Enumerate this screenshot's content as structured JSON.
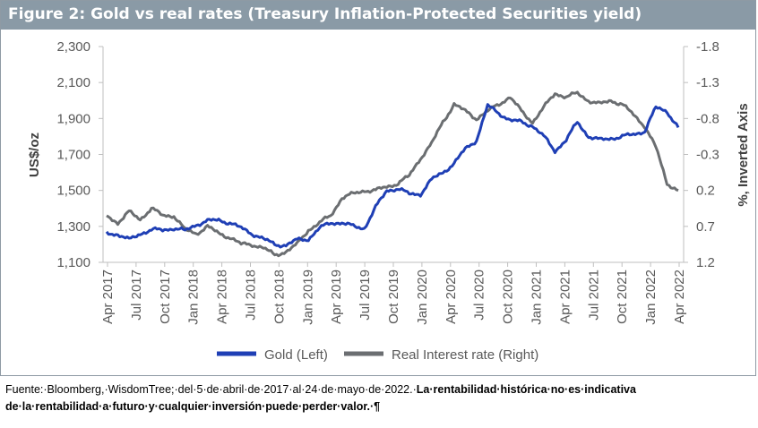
{
  "figure": {
    "title": "Figure 2: Gold vs real rates (Treasury Inflation-Protected Securities yield)"
  },
  "footnote": {
    "line1_plain": "Fuente:·Bloomberg,·WisdomTree;·del·5·de·abril·de·2017·al·24·de·mayo·de·2022.·",
    "line1_bold": "La·rentabilidad·histórica·no·es·indicativa",
    "line2_bold": "de·la·rentabilidad·a·futuro·y·cualquier·inversión·puede·perder·valor.·¶"
  },
  "colors": {
    "gold": "#1f3fb5",
    "real_rate": "#6b6e71",
    "title_bar": "#8a9aa6"
  },
  "chart_data": {
    "type": "line",
    "ylabel": "US$/oz",
    "y2label": "%, Inverted Axis",
    "ylim": [
      1100,
      2300
    ],
    "y2lim": [
      1.2,
      -1.8
    ],
    "y2_inverted": true,
    "y_ticks": [
      "1,100",
      "1,300",
      "1,500",
      "1,700",
      "1,900",
      "2,100",
      "2,300"
    ],
    "y2_ticks": [
      "1.2",
      "0.7",
      "0.2",
      "-0.3",
      "-0.8",
      "-1.3",
      "-1.8"
    ],
    "x_ticks": [
      "Apr 2017",
      "Jul 2017",
      "Oct 2017",
      "Jan 2018",
      "Apr 2018",
      "Jul 2018",
      "Oct 2018",
      "Jan 2019",
      "Apr 2019",
      "Jul 2019",
      "Oct 2019",
      "Jan 2020",
      "Apr 2020",
      "Jul 2020",
      "Oct 2020",
      "Jan 2021",
      "Apr 2021",
      "Jul 2021",
      "Oct 2021",
      "Jan 2022",
      "Apr 2022"
    ],
    "legend_position": "bottom",
    "grid": false,
    "series": [
      {
        "name": "Gold (Left)",
        "axis": "left",
        "values": [
          1265,
          1255,
          1225,
          1260,
          1280,
          1280,
          1290,
          1275,
          1310,
          1330,
          1335,
          1320,
          1290,
          1260,
          1230,
          1200,
          1195,
          1225,
          1230,
          1290,
          1320,
          1320,
          1300,
          1290,
          1405,
          1500,
          1510,
          1480,
          1480,
          1560,
          1600,
          1650,
          1730,
          1780,
          1970,
          1930,
          1890,
          1880,
          1860,
          1800,
          1720,
          1780,
          1880,
          1800,
          1780,
          1790,
          1800,
          1810,
          1830,
          1960,
          1940,
          1850
        ]
      },
      {
        "name": "Real Interest rate (Right)",
        "axis": "right",
        "values": [
          0.55,
          0.65,
          0.5,
          0.6,
          0.45,
          0.55,
          0.55,
          0.75,
          0.8,
          0.7,
          0.8,
          0.85,
          0.95,
          0.95,
          1.0,
          1.1,
          1.05,
          0.95,
          0.75,
          0.65,
          0.55,
          0.3,
          0.25,
          0.2,
          0.2,
          0.15,
          0.1,
          0.0,
          -0.25,
          -0.45,
          -0.75,
          -1.0,
          -0.9,
          -0.8,
          -0.9,
          -1.0,
          -1.1,
          -0.9,
          -0.75,
          -0.95,
          -1.15,
          -1.1,
          -1.15,
          -1.05,
          -1.0,
          -1.05,
          -1.0,
          -0.85,
          -0.7,
          -0.4,
          0.1,
          0.2
        ]
      }
    ]
  }
}
